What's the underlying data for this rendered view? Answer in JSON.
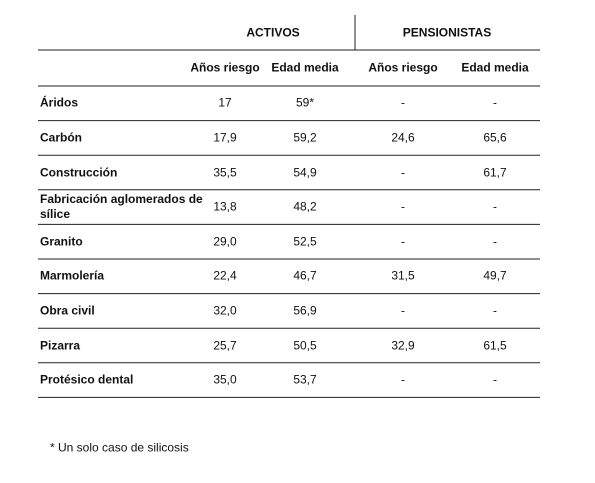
{
  "header": {
    "groups": [
      "ACTIVOS",
      "PENSIONISTAS"
    ],
    "columns": [
      "Años riesgo",
      "Edad media",
      "Años riesgo",
      "Edad media"
    ]
  },
  "table": {
    "rows": [
      [
        "Áridos",
        "17",
        "59*",
        "-",
        "-"
      ],
      [
        "Carbón",
        "17,9",
        "59,2",
        "24,6",
        "65,6"
      ],
      [
        "Construcción",
        "35,5",
        "54,9",
        "-",
        "61,7"
      ],
      [
        "Fabricación aglomerados de sílice",
        "13,8",
        "48,2",
        "-",
        "-"
      ],
      [
        "Granito",
        "29,0",
        "52,5",
        "-",
        "-"
      ],
      [
        "Marmolería",
        "22,4",
        "46,7",
        "31,5",
        "49,7"
      ],
      [
        "Obra civil",
        "32,0",
        "56,9",
        "-",
        "-"
      ],
      [
        "Pizarra",
        "25,7",
        "50,5",
        "32,9",
        "61,5"
      ],
      [
        "Protésico dental",
        "35,0",
        "53,7",
        "-",
        "-"
      ]
    ]
  },
  "footnote": "* Un solo caso de silicosis"
}
